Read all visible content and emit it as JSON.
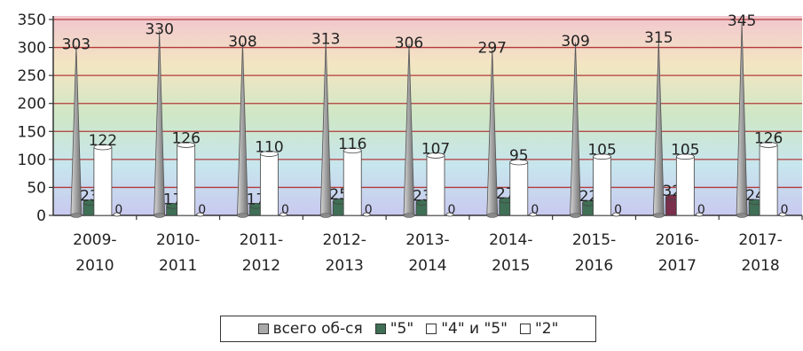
{
  "chart_data": {
    "type": "bar",
    "categories": [
      [
        "2009-",
        "2010"
      ],
      [
        "2010-",
        "2011"
      ],
      [
        "2011-",
        "2012"
      ],
      [
        "2012-",
        "2013"
      ],
      [
        "2013-",
        "2014"
      ],
      [
        "2014-",
        "2015"
      ],
      [
        "2015-",
        "2016"
      ],
      [
        "2016-",
        "2017"
      ],
      [
        "2017-",
        "2018"
      ]
    ],
    "series": [
      {
        "name": "всего об-ся",
        "values": [
          303,
          330,
          308,
          313,
          306,
          297,
          309,
          315,
          345
        ],
        "color": "#a9a9a9",
        "shape": "cone"
      },
      {
        "name": "\"5\"",
        "values": [
          23,
          17,
          17,
          25,
          23,
          27,
          22,
          32,
          24
        ],
        "color": "#3f6f55",
        "shape": "cylinder"
      },
      {
        "name": "\"4\" и \"5\"",
        "values": [
          122,
          126,
          110,
          116,
          107,
          95,
          105,
          105,
          126
        ],
        "color": "#ffffff",
        "shape": "cylinder"
      },
      {
        "name": "\"2\"",
        "values": [
          0,
          0,
          0,
          0,
          0,
          0,
          0,
          0,
          0
        ],
        "color": "#ffffff",
        "shape": "cylinder"
      }
    ],
    "special_colors": {
      "\"5\"": {
        "2016-2017": "#7a2f4a"
      }
    },
    "ylim": [
      0,
      350
    ],
    "yticks": [
      0,
      50,
      100,
      150,
      200,
      250,
      300,
      350
    ],
    "grid": true,
    "grid_color": "#b33a3a",
    "background_gradient": [
      "#f2c6cf",
      "#f3e6c2",
      "#cfe7c6",
      "#c7e6ee",
      "#c9c9ef"
    ],
    "legend_position": "bottom",
    "title": "",
    "xlabel": "",
    "ylabel": ""
  }
}
